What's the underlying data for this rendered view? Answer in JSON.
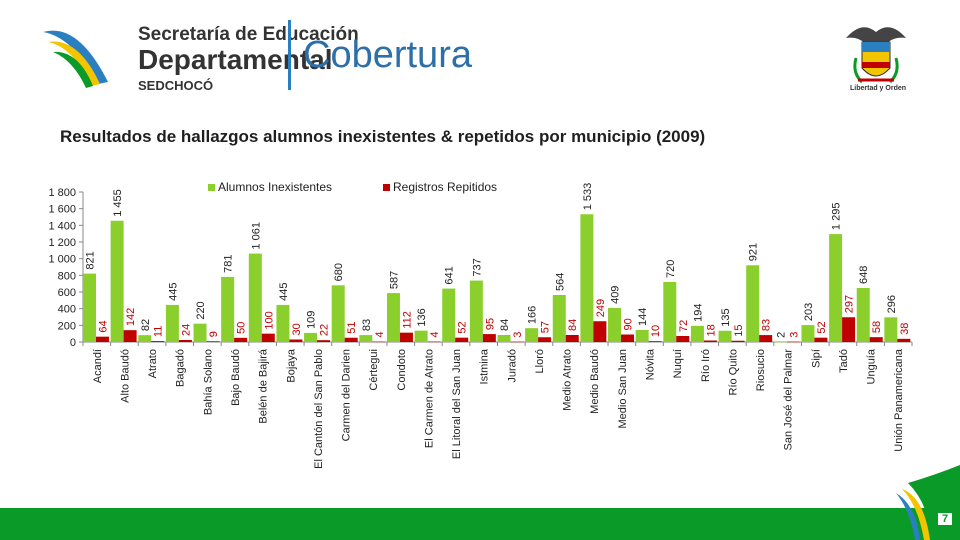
{
  "header": {
    "org_line1": "Secretaría de Educación",
    "org_line2": "Departamental",
    "org_line3": "SEDCHOCÓ",
    "section": "Cobertura",
    "crest_motto": "Libertad y Orden"
  },
  "footer": {
    "page_number": "7"
  },
  "colors": {
    "series1": "#8bcf2c",
    "series2": "#c00000",
    "footer": "#0a9a27",
    "accent_blue": "#2d6fa8"
  },
  "chart_data": {
    "type": "bar",
    "title": "Resultados de hallazgos alumnos inexistentes & repetidos por municipio (2009)",
    "xlabel": "",
    "ylabel": "",
    "ylim": [
      0,
      1800
    ],
    "yticks": [
      "0",
      "200",
      "400",
      "600",
      "800",
      "1 000",
      "1 200",
      "1 400",
      "1 600",
      "1 800"
    ],
    "grid": false,
    "legend_position": "top",
    "categories": [
      "Acandí",
      "Alto Baudó",
      "Atrato",
      "Bagadó",
      "Bahía Solano",
      "Bajo Baudó",
      "Belén de Bajirá",
      "Bojaya",
      "El Cantón del San Pablo",
      "Carmen del Darien",
      "Cértegui",
      "Condoto",
      "El Carmen de Atrato",
      "El Litoral del San Juan",
      "Istmina",
      "Juradó",
      "Lloró",
      "Medio Atrato",
      "Medio Baudó",
      "Medio San Juan",
      "Nóvita",
      "Nuquí",
      "Río Iró",
      "Río Quito",
      "Riosucio",
      "San José del Palmar",
      "Sipí",
      "Tadó",
      "Unguía",
      "Unión Panamericana"
    ],
    "series": [
      {
        "name": "Alumnos Inexistentes",
        "values": [
          821,
          1455,
          82,
          445,
          220,
          781,
          1061,
          445,
          109,
          680,
          83,
          587,
          136,
          641,
          737,
          84,
          166,
          564,
          1533,
          409,
          144,
          720,
          194,
          135,
          921,
          2,
          203,
          1295,
          648,
          296
        ],
        "labels": [
          "821",
          "1 455",
          "82",
          "445",
          "220",
          "781",
          "1 061",
          "445",
          "109",
          "680",
          "83",
          "587",
          "136",
          "641",
          "737",
          "84",
          "166",
          "564",
          "1 533",
          "409",
          "144",
          "720",
          "194",
          "135",
          "921",
          "2",
          "203",
          "1 295",
          "648",
          "296"
        ]
      },
      {
        "name": "Registros Repitidos",
        "values": [
          64,
          142,
          11,
          24,
          9,
          50,
          100,
          30,
          22,
          51,
          4,
          112,
          4,
          52,
          95,
          3,
          57,
          84,
          249,
          90,
          10,
          72,
          18,
          15,
          83,
          3,
          52,
          297,
          58,
          38
        ],
        "labels": [
          "64",
          "142",
          "11",
          "24",
          "9",
          "50",
          "100",
          "30",
          "22",
          "51",
          "4",
          "112",
          "4",
          "52",
          "95",
          "3",
          "57",
          "84",
          "249",
          "90",
          "10",
          "72",
          "18",
          "15",
          "83",
          "3",
          "52",
          "297",
          "58",
          "38"
        ]
      }
    ]
  }
}
